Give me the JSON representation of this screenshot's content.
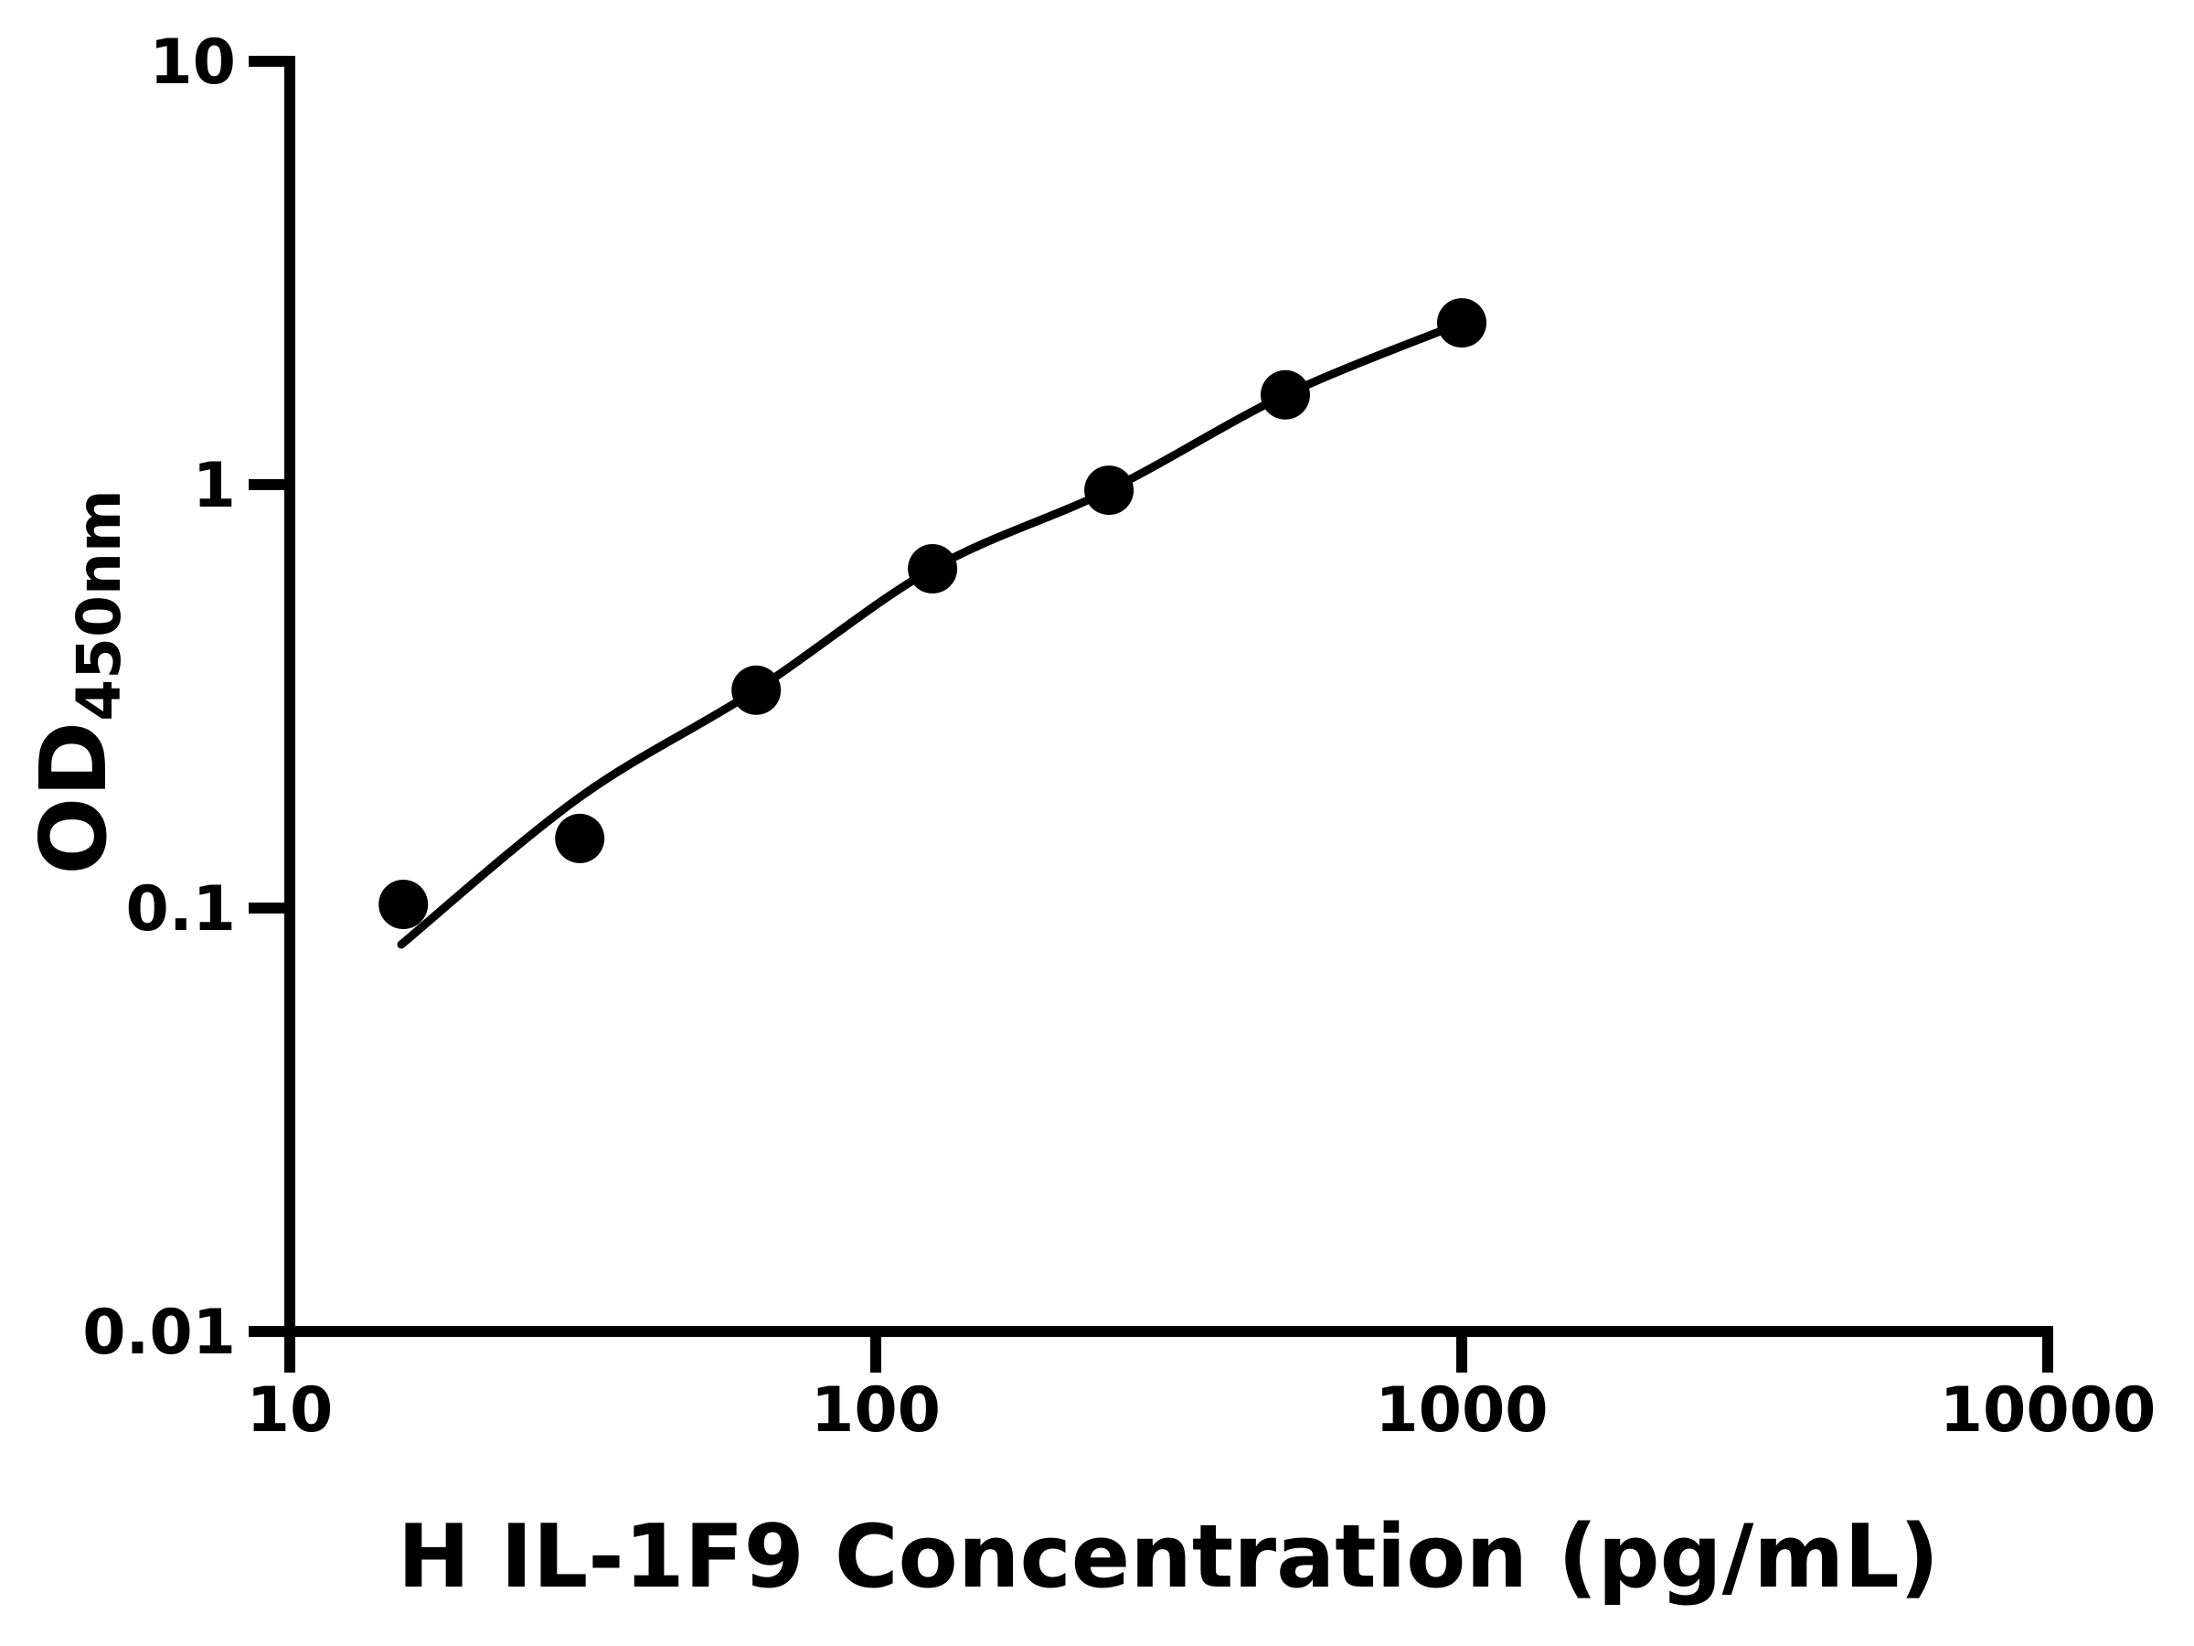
{
  "chart_data": {
    "type": "scatter",
    "title": "",
    "xlabel": "H IL-1F9 Concentration (pg/mL)",
    "ylabel_main": "OD",
    "ylabel_sub": "450nm",
    "x_scale": "log",
    "y_scale": "log",
    "xlim": [
      10,
      10000
    ],
    "ylim": [
      0.01,
      10
    ],
    "x_ticks": [
      10,
      100,
      1000,
      10000
    ],
    "x_tick_labels": [
      "10",
      "100",
      "1000",
      "10000"
    ],
    "y_ticks": [
      10,
      1,
      0.1,
      0.01
    ],
    "y_tick_labels": [
      "10",
      "1",
      "0.1",
      "0.01"
    ],
    "grid": false,
    "legend": false,
    "background_color": "#ffffff",
    "marker_color": "#000000",
    "line_color": "#000000",
    "points": [
      {
        "x": 15.625,
        "y": 0.102
      },
      {
        "x": 31.25,
        "y": 0.146
      },
      {
        "x": 62.5,
        "y": 0.327
      },
      {
        "x": 125,
        "y": 0.633
      },
      {
        "x": 250,
        "y": 0.97
      },
      {
        "x": 500,
        "y": 1.63
      },
      {
        "x": 1000,
        "y": 2.41
      }
    ],
    "fit_curve": [
      [
        15.5,
        0.082
      ],
      [
        31.3,
        0.183
      ],
      [
        62.4,
        0.327
      ],
      [
        125,
        0.633
      ],
      [
        250,
        0.97
      ],
      [
        500,
        1.63
      ],
      [
        1000,
        2.41
      ]
    ]
  }
}
